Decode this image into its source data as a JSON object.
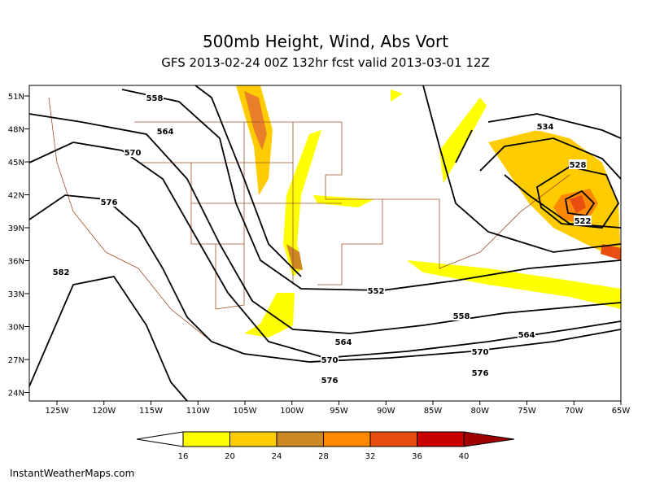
{
  "header": {
    "title": "500mb Height, Wind, Abs Vort",
    "subtitle": "GFS 2013-02-24 00Z 132hr fcst valid 2013-03-01 12Z"
  },
  "map": {
    "lat_labels": [
      "51N",
      "48N",
      "45N",
      "42N",
      "39N",
      "36N",
      "33N",
      "30N",
      "27N",
      "24N"
    ],
    "lon_labels": [
      "125W",
      "120W",
      "115W",
      "110W",
      "105W",
      "100W",
      "95W",
      "90W",
      "85W",
      "80W",
      "75W",
      "70W",
      "65W"
    ],
    "contour_labels": [
      "558",
      "564",
      "570",
      "576",
      "582",
      "534",
      "528",
      "522",
      "552",
      "558",
      "564",
      "564",
      "570",
      "570",
      "576",
      "576"
    ]
  },
  "colorbar": {
    "labels": [
      "16",
      "20",
      "24",
      "28",
      "32",
      "36",
      "40"
    ],
    "colors": [
      "#ffffff",
      "#ffff00",
      "#ffcc00",
      "#cc8822",
      "#ff8800",
      "#e84e10",
      "#c80000",
      "#a00000"
    ]
  },
  "footer": {
    "credit": "InstantWeatherMaps.com"
  }
}
